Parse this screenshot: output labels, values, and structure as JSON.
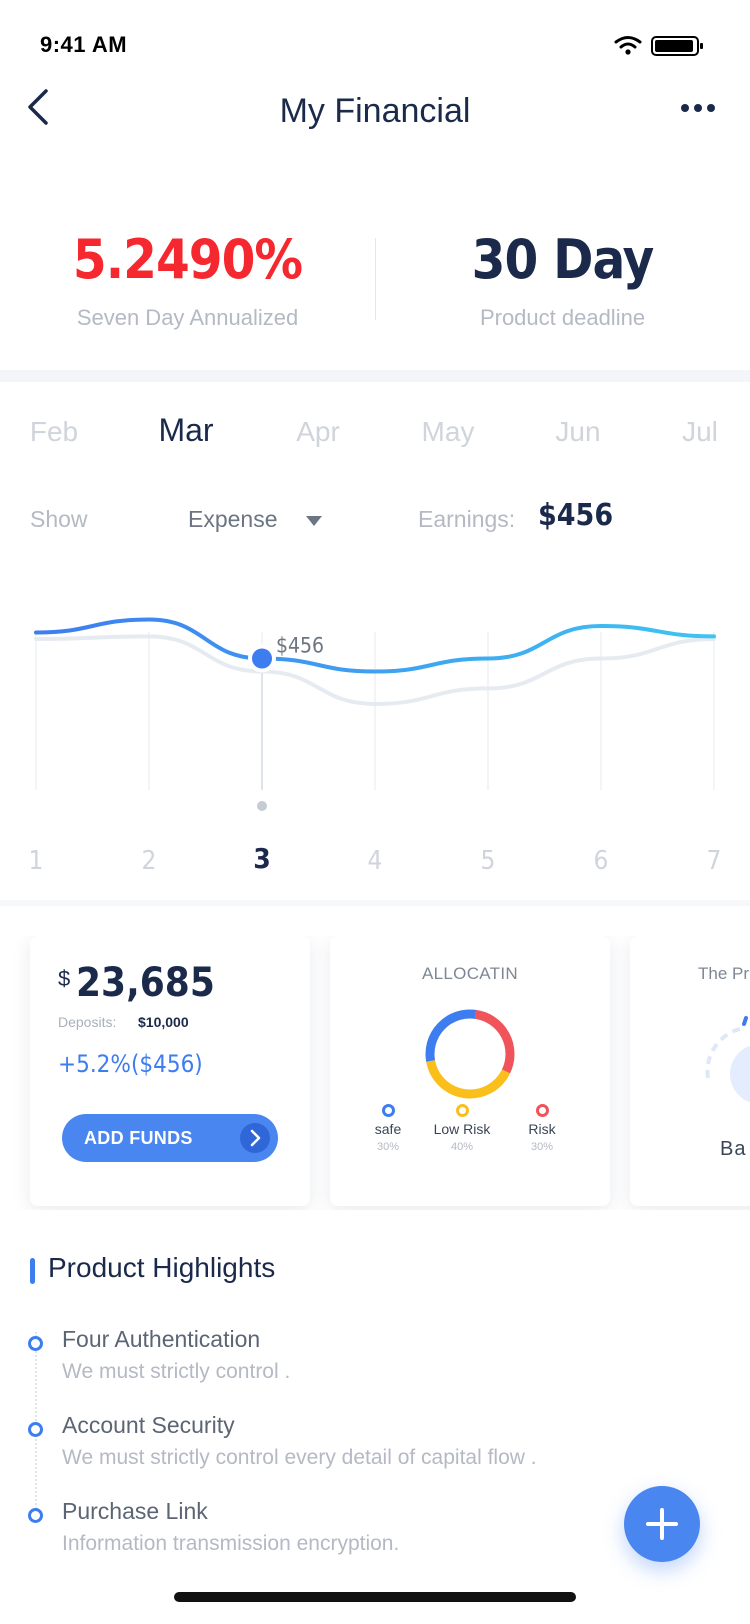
{
  "status_bar": {
    "time": "9:41 AM",
    "icons": [
      "wifi-icon",
      "battery-icon"
    ]
  },
  "nav": {
    "title": "My Financial",
    "back_icon": "chevron-left-icon",
    "more_icon": "more-dots-icon"
  },
  "summary": {
    "rate_value": "5.2490%",
    "rate_label": "Seven Day Annualized",
    "deadline_value": "30 Day",
    "deadline_label": "Product deadline",
    "rate_color": "#f5282f"
  },
  "months": {
    "items": [
      "Feb",
      "Mar",
      "Apr",
      "May",
      "Jun",
      "Jul"
    ],
    "selected": "Mar"
  },
  "filter": {
    "show_label": "Show",
    "selected_option": "Expense",
    "earnings_label": "Earnings:",
    "earnings_value": "$456"
  },
  "chart_data": {
    "type": "line",
    "x": [
      1,
      2,
      3,
      4,
      5,
      6,
      7
    ],
    "tick_labels": [
      "1",
      "2",
      "3",
      "4",
      "5",
      "6",
      "7"
    ],
    "selected_x": 3,
    "selected_label": "$456",
    "series": [
      {
        "values": [
          0.75,
          0.85,
          0.55,
          0.45,
          0.55,
          0.8,
          0.72
        ],
        "color": "#3d7df0"
      },
      {
        "values": [
          0.7,
          0.72,
          0.45,
          0.2,
          0.32,
          0.55,
          0.7
        ],
        "color": "#e6ebf2"
      }
    ],
    "grid": true,
    "colors": {
      "accent": "#3d7df0",
      "accent_end": "#3ec4f2",
      "ghost": "#e6ebf2"
    }
  },
  "balance_card": {
    "currency": "$",
    "amount": "23,685",
    "deposits_label": "Deposits:",
    "deposits_value": "$10,000",
    "change": "+5.2%($456)",
    "button_label": "ADD FUNDS"
  },
  "allocation_card": {
    "title": "ALLOCATIN",
    "segments": [
      {
        "name": "safe",
        "percent": "30%",
        "value": 30,
        "color": "#3d7df0"
      },
      {
        "name": "Low Risk",
        "percent": "40%",
        "value": 40,
        "color": "#fbbf1c"
      },
      {
        "name": "Risk",
        "percent": "30%",
        "value": 30,
        "color": "#f0535a"
      }
    ]
  },
  "partial_card": {
    "title": "The Pr",
    "label": "Ba"
  },
  "highlights": {
    "title": "Product Highlights",
    "items": [
      {
        "name": "Four Authentication",
        "desc": "We must strictly control ."
      },
      {
        "name": "Account Security",
        "desc": "We must strictly control every detail of capital flow ."
      },
      {
        "name": "Purchase Link",
        "desc": "Information transmission encryption."
      }
    ]
  },
  "fab": {
    "icon": "plus-icon"
  }
}
